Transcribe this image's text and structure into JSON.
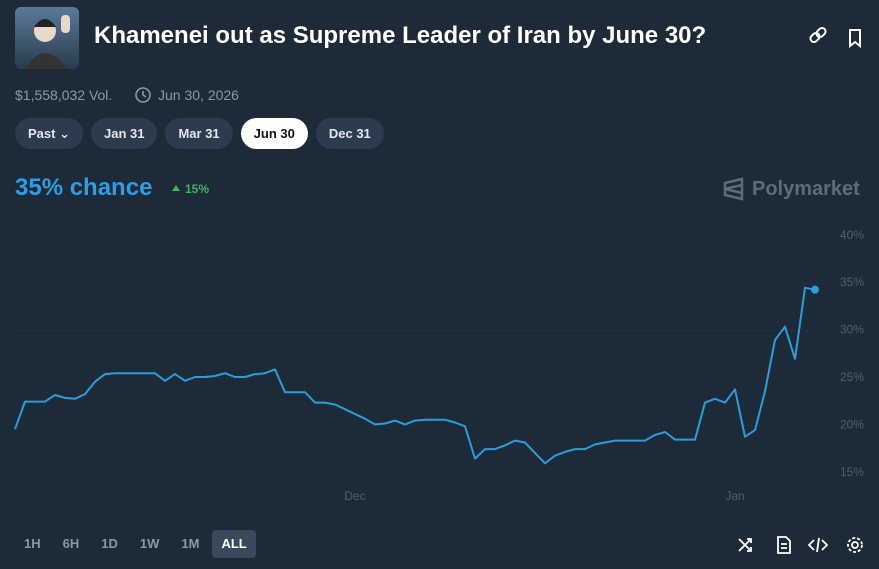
{
  "header": {
    "title": "Khamenei out as Supreme Leader of Iran by June 30?",
    "volume": "$1,558,032 Vol.",
    "end_date": "Jun 30, 2026"
  },
  "date_tabs": [
    "Past",
    "Jan 31",
    "Mar 31",
    "Jun 30",
    "Dec 31"
  ],
  "chance": "35% chance",
  "change": "15%",
  "brand": "Polymarket",
  "ranges": [
    "1H",
    "6H",
    "1D",
    "1W",
    "1M",
    "ALL"
  ],
  "chart_data": {
    "type": "line",
    "color": "#2d9cdb",
    "grid": true,
    "categories": [
      null,
      null,
      null,
      null,
      null,
      null,
      null,
      null,
      null,
      null,
      null,
      null,
      null,
      null,
      null,
      null,
      null,
      null,
      null,
      null,
      null,
      null,
      null,
      null,
      null,
      null,
      null,
      null,
      null,
      null,
      null,
      null,
      null,
      null,
      "Dec",
      null,
      null,
      null,
      null,
      null,
      null,
      null,
      null,
      null,
      null,
      null,
      null,
      null,
      null,
      null,
      null,
      null,
      null,
      null,
      null,
      null,
      null,
      null,
      null,
      null,
      null,
      null,
      null,
      null,
      null,
      null,
      null,
      null,
      null,
      null,
      null,
      null,
      "Jan",
      null,
      null,
      null,
      null,
      null,
      null,
      null,
      null
    ],
    "values": [
      19.6,
      22.5,
      22.5,
      22.5,
      23.2,
      22.9,
      22.8,
      23.3,
      24.6,
      25.4,
      25.5,
      25.5,
      25.5,
      25.5,
      25.5,
      24.7,
      25.4,
      24.7,
      25.1,
      25.1,
      25.2,
      25.5,
      25.1,
      25.1,
      25.4,
      25.5,
      25.9,
      23.5,
      23.5,
      23.5,
      22.4,
      22.4,
      22.2,
      21.7,
      21.2,
      20.7,
      20.1,
      20.2,
      20.5,
      20.1,
      20.5,
      20.6,
      20.6,
      20.6,
      20.3,
      19.9,
      16.5,
      17.5,
      17.5,
      17.9,
      18.4,
      18.2,
      17.1,
      16.0,
      16.8,
      17.2,
      17.5,
      17.5,
      18.0,
      18.2,
      18.4,
      18.4,
      18.4,
      18.4,
      19.0,
      19.3,
      18.5,
      18.5,
      18.5,
      22.4,
      22.8,
      22.4,
      23.8,
      18.8,
      19.5,
      23.6,
      29.0,
      30.4,
      27.0,
      34.5,
      34.3
    ],
    "ylim": [
      13.4,
      40.8
    ],
    "yticks": [
      {
        "value": 15,
        "label": "15%"
      },
      {
        "value": 20,
        "label": "20%"
      },
      {
        "value": 25,
        "label": "25%"
      },
      {
        "value": 30,
        "label": "30%"
      },
      {
        "value": 35,
        "label": "35%"
      },
      {
        "value": 40,
        "label": "40%"
      }
    ]
  }
}
